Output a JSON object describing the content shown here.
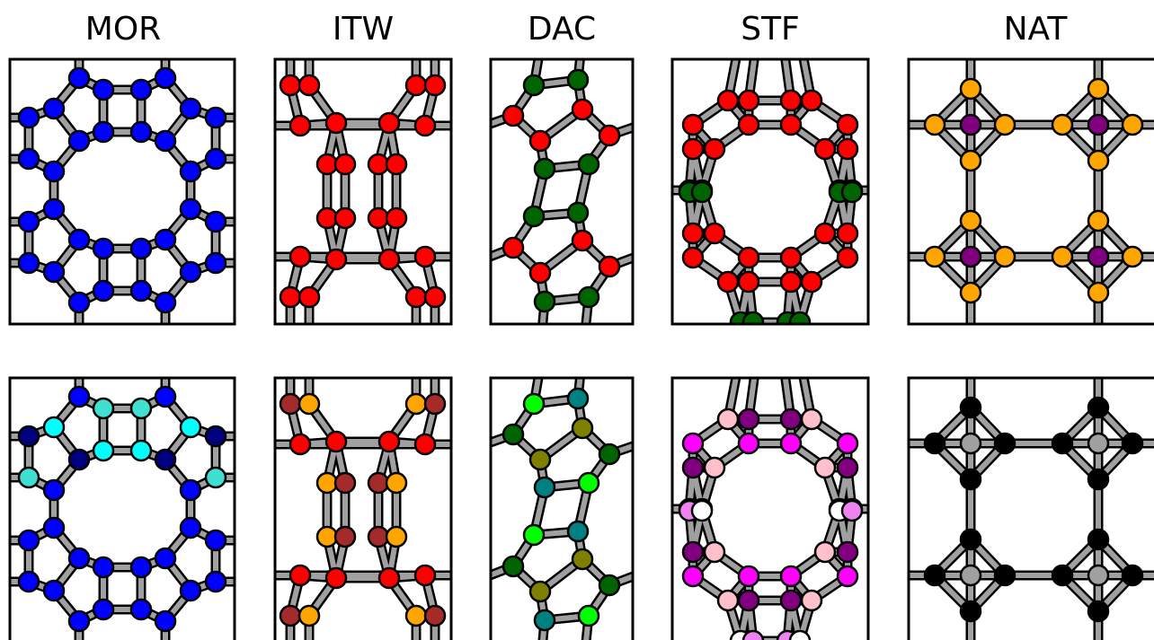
{
  "panel_titles": [
    "MOR",
    "ITW",
    "DAC",
    "STF",
    "NAT"
  ],
  "palette": {
    "MOR_top": "#0000ff",
    "MOR_bottom": [
      "#0000ff",
      "#00ffff",
      "#40e0d0",
      "#000080"
    ],
    "ITW_top": "#ff0000",
    "ITW_bottom": [
      "#ff0000",
      "#ffa500",
      "#a52a2a"
    ],
    "DAC_top": [
      "#ff0000",
      "#006400"
    ],
    "DAC_bottom": [
      "#00ff00",
      "#008080",
      "#006400",
      "#808000"
    ],
    "STF_top": [
      "#ff0000",
      "#006400"
    ],
    "STF_bottom": [
      "#ff00ff",
      "#800080",
      "#ffc0cb",
      "#ee82ee",
      "#ffffff"
    ],
    "NAT_top": [
      "#ffa500",
      "#800080"
    ],
    "NAT_bottom": [
      "#000000",
      "#a0a0a0"
    ],
    "bond": "#a0a0a0"
  }
}
